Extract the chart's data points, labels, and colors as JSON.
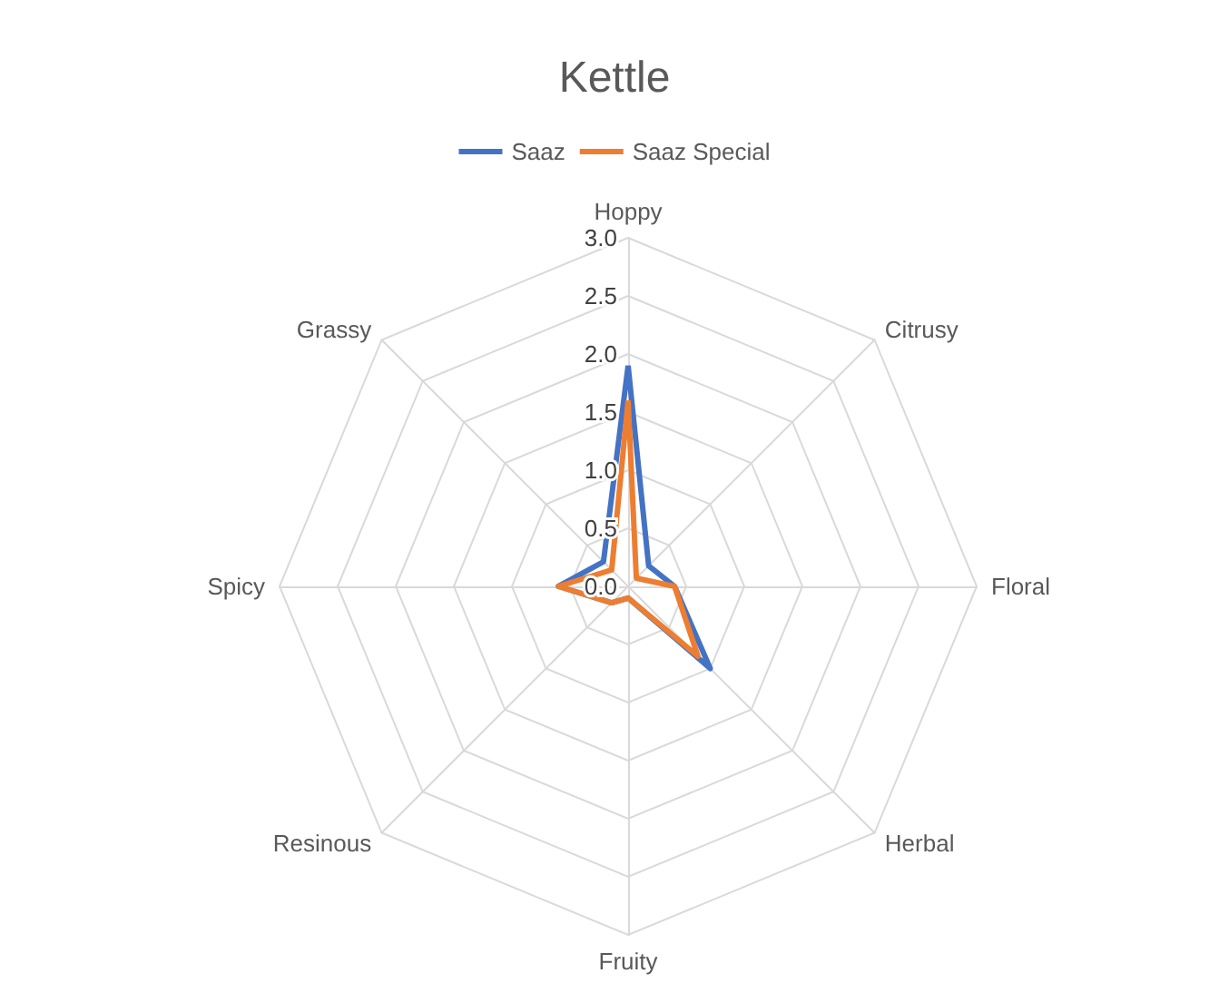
{
  "chart_data": {
    "type": "radar",
    "title": "Kettle",
    "categories": [
      "Hoppy",
      "Citrusy",
      "Floral",
      "Herbal",
      "Fruity",
      "Resinous",
      "Spicy",
      "Grassy"
    ],
    "series": [
      {
        "name": "Saaz",
        "color": "#4472c4",
        "values": [
          1.9,
          0.25,
          0.4,
          1.0,
          0.1,
          0.2,
          0.6,
          0.3
        ]
      },
      {
        "name": "Saaz Special",
        "color": "#ed7d31",
        "values": [
          1.6,
          0.1,
          0.4,
          0.85,
          0.1,
          0.2,
          0.6,
          0.2
        ]
      }
    ],
    "ylim": [
      0,
      3
    ],
    "yticks": [
      {
        "value": 0,
        "label": "0.0"
      },
      {
        "value": 0.5,
        "label": "0.5"
      },
      {
        "value": 1,
        "label": "1.0"
      },
      {
        "value": 1.5,
        "label": "1.5"
      },
      {
        "value": 2,
        "label": "2.0"
      },
      {
        "value": 2.5,
        "label": "2.5"
      },
      {
        "value": 3,
        "label": "3.0"
      }
    ],
    "legend": "top",
    "marker": "none",
    "line_style": "solid"
  }
}
